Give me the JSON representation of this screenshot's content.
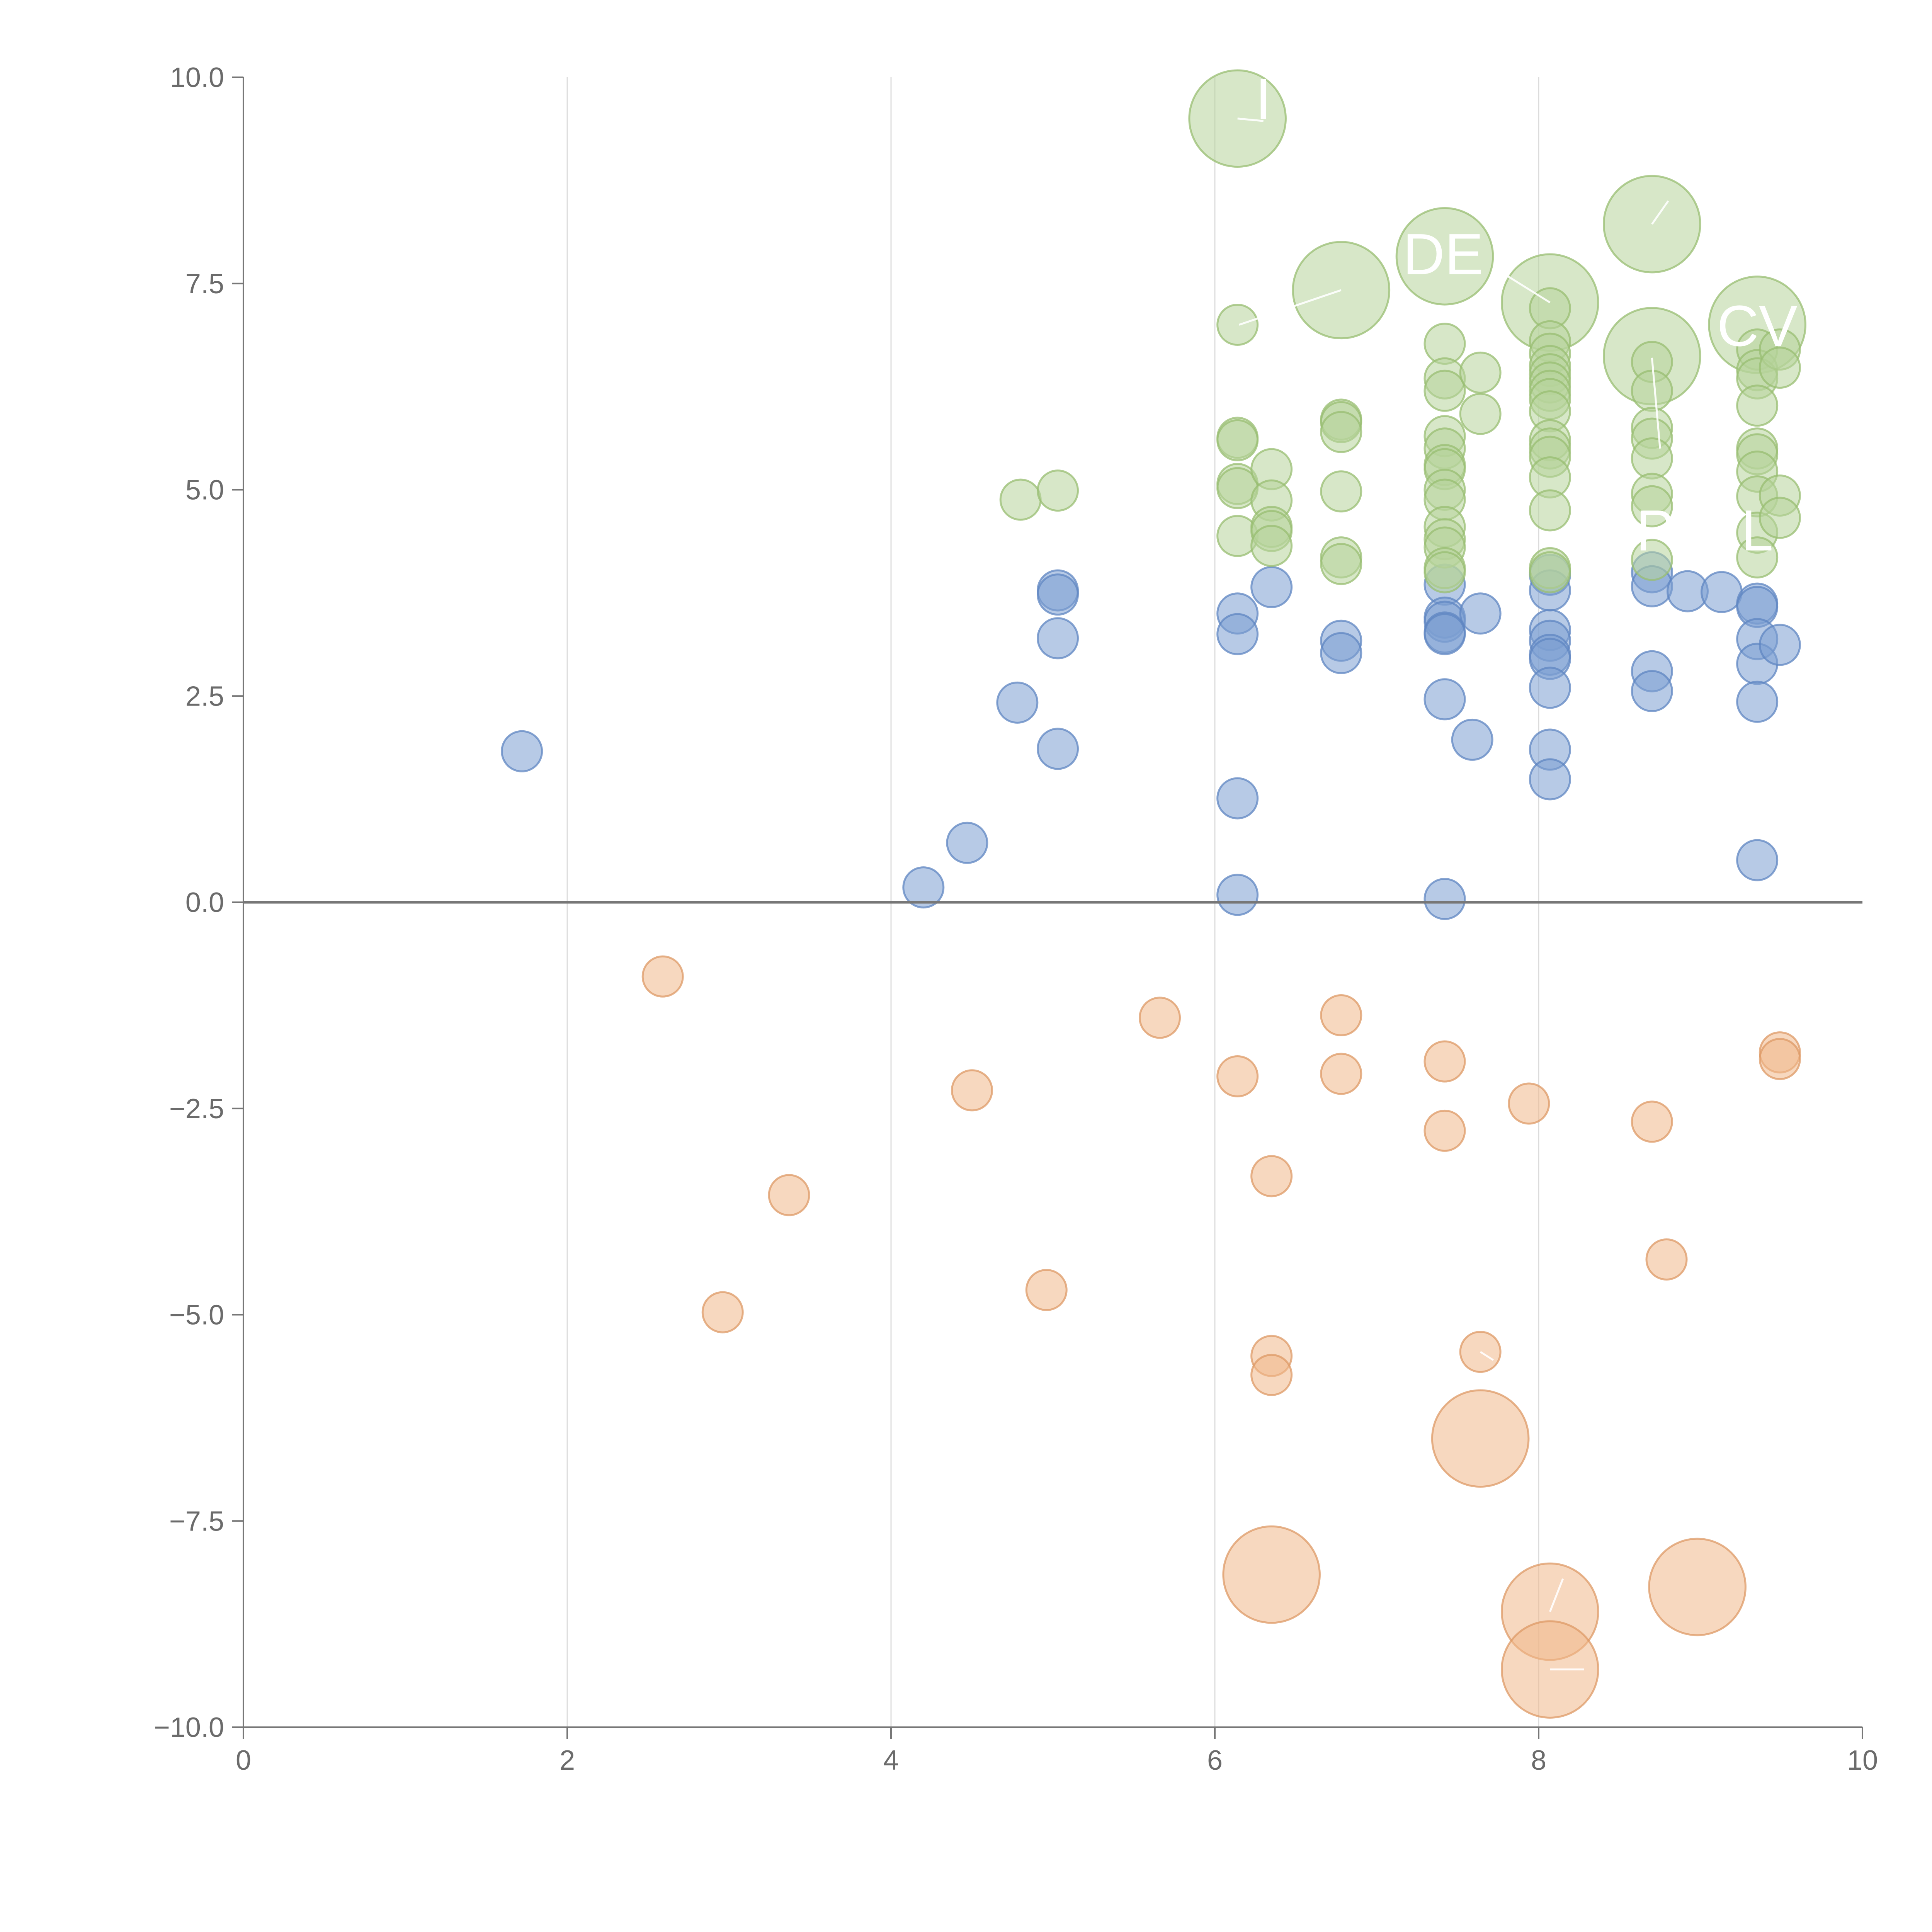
{
  "chart_data": {
    "type": "scatter",
    "title": "",
    "xlabel": "",
    "ylabel": "",
    "xlim": [
      0,
      10
    ],
    "ylim": [
      -10,
      10
    ],
    "x_ticks": [
      "0",
      "2",
      "4",
      "6",
      "8",
      "10"
    ],
    "y_ticks": [
      "10.0",
      "7.5",
      "5.0",
      "2.5",
      "0.0",
      "−2.5",
      "−5.0",
      "−7.5",
      "−10.0"
    ],
    "x_tick_values": [
      0,
      2,
      4,
      6,
      8,
      10
    ],
    "y_tick_values": [
      10,
      7.5,
      5,
      2.5,
      0,
      -2.5,
      -5,
      -7.5,
      -10
    ],
    "vertical_gridlines_at": [
      2,
      4,
      6,
      8
    ],
    "reference_line_y": 0,
    "legend": "none",
    "series": [
      {
        "name": "blue",
        "color": "#7b9fd1",
        "stroke": "#5f86c2",
        "points": [
          [
            1.72,
            1.83,
            1
          ],
          [
            4.2,
            0.18,
            1
          ],
          [
            4.47,
            0.72,
            1
          ],
          [
            4.78,
            2.42,
            1
          ],
          [
            5.03,
            3.78,
            1
          ],
          [
            5.03,
            3.73,
            1
          ],
          [
            5.03,
            3.2,
            1
          ],
          [
            5.03,
            1.86,
            1
          ],
          [
            6.14,
            3.5,
            1
          ],
          [
            6.14,
            3.25,
            1
          ],
          [
            6.14,
            1.26,
            1
          ],
          [
            6.14,
            0.09,
            1
          ],
          [
            6.35,
            3.82,
            1
          ],
          [
            6.78,
            3.17,
            1
          ],
          [
            6.78,
            3.02,
            1
          ],
          [
            7.42,
            3.85,
            1
          ],
          [
            7.42,
            3.45,
            1
          ],
          [
            7.42,
            3.4,
            1
          ],
          [
            7.42,
            3.27,
            1
          ],
          [
            7.42,
            3.25,
            1
          ],
          [
            7.42,
            2.46,
            1
          ],
          [
            7.42,
            0.04,
            1
          ],
          [
            7.59,
            1.97,
            1
          ],
          [
            7.64,
            3.5,
            1
          ],
          [
            8.07,
            3.97,
            1
          ],
          [
            8.07,
            3.78,
            1
          ],
          [
            8.07,
            3.3,
            1
          ],
          [
            8.07,
            3.17,
            1
          ],
          [
            8.07,
            3.0,
            1
          ],
          [
            8.07,
            2.95,
            1
          ],
          [
            8.07,
            2.6,
            1
          ],
          [
            8.07,
            1.85,
            1
          ],
          [
            8.07,
            1.49,
            1
          ],
          [
            8.7,
            4.0,
            1
          ],
          [
            8.7,
            3.83,
            1
          ],
          [
            8.7,
            2.8,
            1
          ],
          [
            8.7,
            2.56,
            1
          ],
          [
            8.92,
            3.77,
            1
          ],
          [
            9.13,
            3.76,
            1
          ],
          [
            9.35,
            3.62,
            1
          ],
          [
            9.35,
            3.58,
            1
          ],
          [
            9.35,
            3.19,
            1
          ],
          [
            9.35,
            2.89,
            1
          ],
          [
            9.35,
            2.43,
            1
          ],
          [
            9.35,
            0.51,
            1
          ],
          [
            9.49,
            3.12,
            1
          ]
        ]
      },
      {
        "name": "green",
        "color": "#b7d39a",
        "stroke": "#98bd72",
        "points": [
          [
            4.8,
            4.88,
            1
          ],
          [
            5.03,
            4.99,
            1
          ],
          [
            6.14,
            9.5,
            2.4
          ],
          [
            6.14,
            7.0,
            1
          ],
          [
            6.14,
            5.63,
            1
          ],
          [
            6.14,
            5.6,
            1
          ],
          [
            6.14,
            5.07,
            1
          ],
          [
            6.14,
            5.02,
            1
          ],
          [
            6.14,
            4.44,
            1
          ],
          [
            6.35,
            5.25,
            1
          ],
          [
            6.35,
            4.87,
            1
          ],
          [
            6.35,
            4.55,
            1
          ],
          [
            6.35,
            4.5,
            1
          ],
          [
            6.35,
            4.32,
            1
          ],
          [
            6.78,
            7.42,
            2.4
          ],
          [
            6.78,
            5.85,
            1
          ],
          [
            6.78,
            5.82,
            1
          ],
          [
            6.78,
            5.7,
            1
          ],
          [
            6.78,
            4.98,
            1
          ],
          [
            6.78,
            4.18,
            1
          ],
          [
            6.78,
            4.1,
            1
          ],
          [
            7.42,
            7.83,
            2.4
          ],
          [
            7.42,
            6.77,
            1
          ],
          [
            7.42,
            6.35,
            1
          ],
          [
            7.42,
            6.2,
            1
          ],
          [
            7.42,
            5.65,
            1
          ],
          [
            7.42,
            5.5,
            1
          ],
          [
            7.42,
            5.3,
            1
          ],
          [
            7.42,
            5.25,
            1
          ],
          [
            7.42,
            5.0,
            1
          ],
          [
            7.42,
            4.88,
            1
          ],
          [
            7.42,
            4.55,
            1
          ],
          [
            7.42,
            4.4,
            1
          ],
          [
            7.42,
            4.3,
            1
          ],
          [
            7.42,
            4.05,
            1
          ],
          [
            7.42,
            4.0,
            1
          ],
          [
            7.64,
            6.42,
            1
          ],
          [
            7.64,
            5.92,
            1
          ],
          [
            8.07,
            7.27,
            2.4
          ],
          [
            8.07,
            7.2,
            1
          ],
          [
            8.07,
            6.8,
            1
          ],
          [
            8.07,
            6.65,
            1
          ],
          [
            8.07,
            6.5,
            1
          ],
          [
            8.07,
            6.4,
            1
          ],
          [
            8.07,
            6.3,
            1
          ],
          [
            8.07,
            6.2,
            1
          ],
          [
            8.07,
            6.1,
            1
          ],
          [
            8.07,
            5.95,
            1
          ],
          [
            8.07,
            5.6,
            1
          ],
          [
            8.07,
            5.5,
            1
          ],
          [
            8.07,
            5.4,
            1
          ],
          [
            8.07,
            5.15,
            1
          ],
          [
            8.07,
            4.75,
            1
          ],
          [
            8.07,
            4.05,
            1
          ],
          [
            8.07,
            4.0,
            1
          ],
          [
            8.7,
            8.22,
            2.4
          ],
          [
            8.7,
            6.62,
            2.4
          ],
          [
            8.7,
            6.55,
            1
          ],
          [
            8.7,
            6.2,
            1
          ],
          [
            8.7,
            5.75,
            1
          ],
          [
            8.7,
            5.62,
            1
          ],
          [
            8.7,
            5.38,
            1
          ],
          [
            8.7,
            4.95,
            1
          ],
          [
            8.7,
            4.8,
            1
          ],
          [
            8.7,
            4.15,
            1
          ],
          [
            9.35,
            7.0,
            2.4
          ],
          [
            9.35,
            6.7,
            1
          ],
          [
            9.35,
            6.45,
            1
          ],
          [
            9.35,
            6.35,
            1
          ],
          [
            9.35,
            6.02,
            1
          ],
          [
            9.35,
            5.5,
            1
          ],
          [
            9.35,
            5.43,
            1
          ],
          [
            9.35,
            5.22,
            1
          ],
          [
            9.35,
            4.92,
            1
          ],
          [
            9.35,
            4.48,
            1
          ],
          [
            9.35,
            4.18,
            1
          ],
          [
            9.49,
            6.7,
            1
          ],
          [
            9.49,
            6.48,
            1
          ],
          [
            9.49,
            4.93,
            1
          ],
          [
            9.49,
            4.66,
            1
          ]
        ]
      },
      {
        "name": "orange",
        "color": "#f0b88a",
        "stroke": "#dd9a66",
        "points": [
          [
            2.59,
            -0.9,
            1
          ],
          [
            2.96,
            -4.97,
            1
          ],
          [
            3.37,
            -3.55,
            1
          ],
          [
            4.5,
            -2.28,
            1
          ],
          [
            4.96,
            -4.7,
            1
          ],
          [
            5.66,
            -1.4,
            1
          ],
          [
            6.14,
            -2.11,
            1
          ],
          [
            6.35,
            -3.32,
            1
          ],
          [
            6.35,
            -5.5,
            1
          ],
          [
            6.35,
            -5.73,
            1
          ],
          [
            6.35,
            -8.15,
            2.4
          ],
          [
            6.78,
            -1.37,
            1
          ],
          [
            6.78,
            -2.08,
            1
          ],
          [
            7.42,
            -1.93,
            1
          ],
          [
            7.42,
            -2.77,
            1
          ],
          [
            7.64,
            -5.45,
            1
          ],
          [
            7.64,
            -6.5,
            2.4
          ],
          [
            7.94,
            -2.44,
            1
          ],
          [
            8.07,
            -8.6,
            2.4
          ],
          [
            8.07,
            -9.3,
            2.4
          ],
          [
            8.7,
            -2.66,
            1
          ],
          [
            8.79,
            -4.33,
            1
          ],
          [
            8.98,
            -8.3,
            2.4
          ],
          [
            9.49,
            -1.82,
            1
          ],
          [
            9.49,
            -1.9,
            1
          ]
        ]
      }
    ],
    "annotations": [
      {
        "text": "I",
        "x": 6.3,
        "y": 9.68
      },
      {
        "text": "DE",
        "x": 7.41,
        "y": 7.8
      },
      {
        "text": "CV",
        "x": 9.35,
        "y": 6.93
      },
      {
        "text": "P",
        "x": 8.72,
        "y": 4.45
      },
      {
        "text": "L",
        "x": 9.35,
        "y": 4.45
      }
    ]
  }
}
